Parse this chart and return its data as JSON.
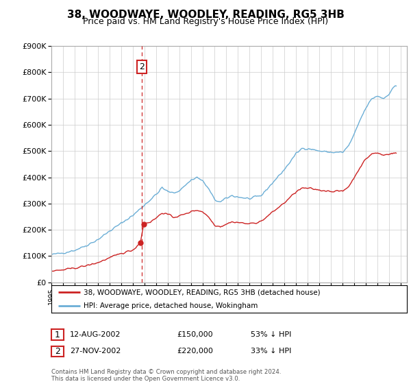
{
  "title": "38, WOODWAYE, WOODLEY, READING, RG5 3HB",
  "subtitle": "Price paid vs. HM Land Registry's House Price Index (HPI)",
  "ylim": [
    0,
    900000
  ],
  "yticks": [
    0,
    100000,
    200000,
    300000,
    400000,
    500000,
    600000,
    700000,
    800000,
    900000
  ],
  "ytick_labels": [
    "£0",
    "£100K",
    "£200K",
    "£300K",
    "£400K",
    "£500K",
    "£600K",
    "£700K",
    "£800K",
    "£900K"
  ],
  "xlim_start": 1995.0,
  "xlim_end": 2025.5,
  "hpi_color": "#6baed6",
  "price_color": "#cc2222",
  "vline_color": "#cc2222",
  "marker_color": "#cc2222",
  "t1_x": 2002.62,
  "t1_y": 150000,
  "t2_x": 2002.92,
  "t2_y": 220000,
  "vline_x": 2002.75,
  "transaction1_date": "12-AUG-2002",
  "transaction1_price": "£150,000",
  "transaction1_pct": "53% ↓ HPI",
  "transaction2_date": "27-NOV-2002",
  "transaction2_price": "£220,000",
  "transaction2_pct": "33% ↓ HPI",
  "legend_line1": "38, WOODWAYE, WOODLEY, READING, RG5 3HB (detached house)",
  "legend_line2": "HPI: Average price, detached house, Wokingham",
  "footer": "Contains HM Land Registry data © Crown copyright and database right 2024.\nThis data is licensed under the Open Government Licence v3.0.",
  "title_fontsize": 11,
  "subtitle_fontsize": 9,
  "background_color": "#ffffff"
}
